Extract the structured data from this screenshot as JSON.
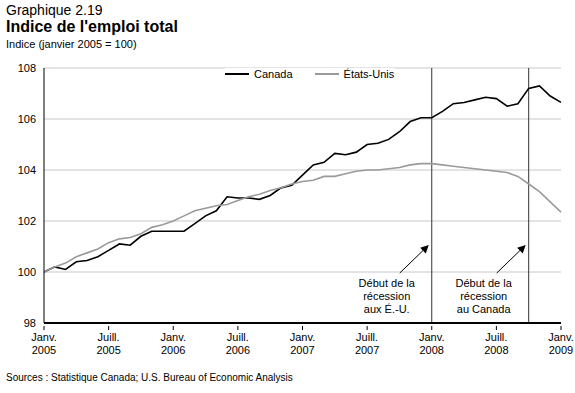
{
  "chart_data": {
    "type": "line",
    "subtitle": "Graphique 2.19",
    "title": "Indice de l'emploi total",
    "ylabel": "Indice (janvier 2005 = 100)",
    "source": "Sources : Statistique Canada; U.S. Bureau of Economic Analysis",
    "categories": [
      "Janv. 2005",
      null,
      null,
      null,
      null,
      null,
      "Juill. 2005",
      null,
      null,
      null,
      null,
      null,
      "Janv. 2006",
      null,
      null,
      null,
      null,
      null,
      "Juill. 2006",
      null,
      null,
      null,
      null,
      null,
      "Janv. 2007",
      null,
      null,
      null,
      null,
      null,
      "Juill. 2007",
      null,
      null,
      null,
      null,
      null,
      "Janv. 2008",
      null,
      null,
      null,
      null,
      null,
      "Juill. 2008",
      null,
      null,
      null,
      null,
      null,
      "Janv. 2009"
    ],
    "series": [
      {
        "name": "Canada",
        "color": "#000000",
        "values": [
          100,
          100.2,
          100.1,
          100.4,
          100.45,
          100.6,
          100.85,
          101.1,
          101.05,
          101.4,
          101.6,
          101.6,
          101.6,
          101.6,
          101.9,
          102.2,
          102.4,
          102.95,
          102.9,
          102.9,
          102.85,
          103,
          103.3,
          103.4,
          103.8,
          104.2,
          104.3,
          104.65,
          104.6,
          104.7,
          105,
          105.05,
          105.2,
          105.5,
          105.9,
          106.05,
          106.05,
          106.3,
          106.6,
          106.65,
          106.75,
          106.85,
          106.8,
          106.5,
          106.6,
          107.2,
          107.3,
          106.9,
          106.65
        ]
      },
      {
        "name": "États-Unis",
        "color": "#9a9a9a",
        "values": [
          100,
          100.2,
          100.35,
          100.6,
          100.75,
          100.9,
          101.15,
          101.3,
          101.35,
          101.5,
          101.75,
          101.85,
          102,
          102.2,
          102.4,
          102.5,
          102.6,
          102.65,
          102.8,
          102.95,
          103.05,
          103.2,
          103.3,
          103.45,
          103.55,
          103.6,
          103.75,
          103.75,
          103.85,
          103.95,
          104,
          104,
          104.05,
          104.1,
          104.2,
          104.25,
          104.25,
          104.2,
          104.15,
          104.1,
          104.05,
          104,
          103.95,
          103.9,
          103.75,
          103.45,
          103.15,
          102.75,
          102.35
        ]
      }
    ],
    "ylim": [
      98,
      108
    ],
    "yticks": [
      98,
      100,
      102,
      104,
      106,
      108
    ],
    "grid": true,
    "legend": "top",
    "annotations": [
      {
        "index": 36,
        "text": [
          "Début de la",
          "récession",
          "aux É.-U."
        ]
      },
      {
        "index": 45,
        "text": [
          "Début de la",
          "récession",
          "au Canada"
        ]
      }
    ]
  }
}
